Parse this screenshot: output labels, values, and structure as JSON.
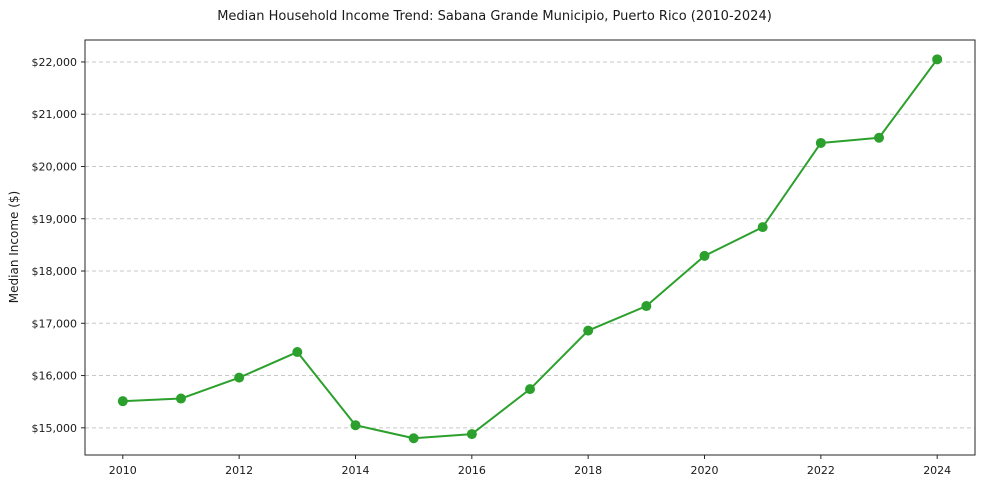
{
  "chart_data": {
    "type": "line",
    "title": "Median Household Income Trend: Sabana Grande Municipio, Puerto Rico (2010-2024)",
    "xlabel": "",
    "ylabel": "Median Income ($)",
    "x": [
      2010,
      2011,
      2012,
      2013,
      2014,
      2015,
      2016,
      2017,
      2018,
      2019,
      2020,
      2021,
      2022,
      2023,
      2024
    ],
    "values": [
      15510,
      15560,
      15960,
      16450,
      15050,
      14800,
      14880,
      15740,
      16860,
      17330,
      18290,
      18840,
      20450,
      20550,
      22050
    ],
    "series_name": "Median Household Income",
    "series_color": "#2ca02c",
    "marker": "circle",
    "xlim": [
      2009.35,
      2024.65
    ],
    "ylim": [
      14480,
      22420
    ],
    "xticks": [
      2010,
      2012,
      2014,
      2016,
      2018,
      2020,
      2022,
      2024
    ],
    "yticks": [
      15000,
      16000,
      17000,
      18000,
      19000,
      20000,
      21000,
      22000
    ],
    "ytick_labels": [
      "$15,000",
      "$16,000",
      "$17,000",
      "$18,000",
      "$19,000",
      "$20,000",
      "$21,000",
      "$22,000"
    ],
    "grid": "horizontal-dashed",
    "grid_color": "#c8c8c8",
    "axis_color": "#262626",
    "background_color": "#ffffff",
    "legend": "none"
  }
}
